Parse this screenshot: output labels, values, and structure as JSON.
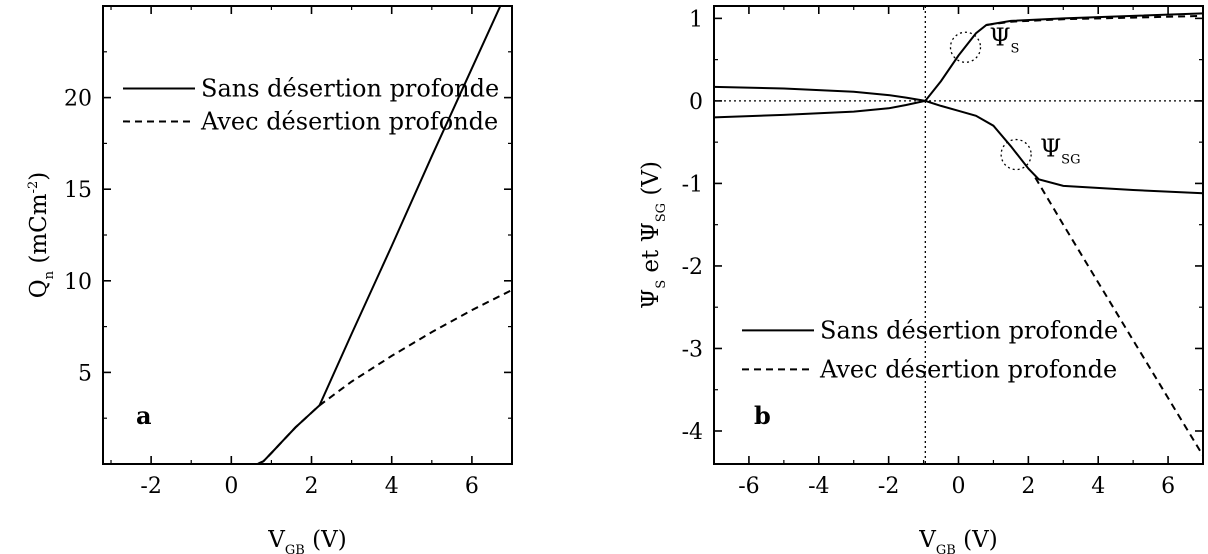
{
  "chart_data": [
    {
      "type": "line",
      "panel_label": "a",
      "xlabel": {
        "main": "V",
        "sub": "GB",
        "unit": " (V)"
      },
      "ylabel": {
        "main": "Q",
        "sub": "n",
        "unit_pre": " (mCm",
        "unit_sup": "-2",
        "unit_post": ")"
      },
      "xlim": [
        -3.2,
        7
      ],
      "ylim": [
        0,
        25
      ],
      "xticks": [
        -2,
        0,
        2,
        4,
        6
      ],
      "yticks": [
        5,
        10,
        15,
        20
      ],
      "legend": {
        "placement": "top-left"
      },
      "series": [
        {
          "name": "Sans désertion profonde",
          "style": "solid",
          "x": [
            -3.2,
            0.65,
            0.8,
            1.0,
            1.3,
            1.6,
            2.0,
            2.2,
            3,
            4,
            5,
            6,
            7
          ],
          "y": [
            0,
            0,
            0.15,
            0.6,
            1.3,
            2.0,
            2.8,
            3.2,
            7.1,
            11.9,
            16.8,
            21.6,
            26.4
          ]
        },
        {
          "name": "Avec désertion profonde",
          "style": "dashed",
          "x": [
            -3.2,
            0.65,
            0.8,
            1.0,
            1.3,
            1.6,
            2.0,
            2.2,
            3,
            4,
            5,
            6,
            7
          ],
          "y": [
            0,
            0,
            0.15,
            0.6,
            1.3,
            2.0,
            2.8,
            3.2,
            4.5,
            5.9,
            7.2,
            8.4,
            9.5
          ]
        }
      ]
    },
    {
      "type": "line",
      "panel_label": "b",
      "xlabel": {
        "main": "V",
        "sub": "GB",
        "unit": " (V)"
      },
      "ylabel": {
        "main1": "Ψ",
        "sub1": "S",
        "mid": " et Ψ",
        "sub2": "SG",
        "unit": " (V)"
      },
      "xlim": [
        -7,
        7
      ],
      "ylim": [
        -4.4,
        1.15
      ],
      "xticks": [
        -6,
        -4,
        -2,
        0,
        2,
        4,
        6
      ],
      "yticks": [
        1,
        0,
        -1,
        -2,
        -3,
        -4
      ],
      "ref_lines": {
        "x": -0.95,
        "y": 0
      },
      "annotations": [
        {
          "main": "Ψ",
          "sub": "S",
          "x": 0.2,
          "y": 0.65
        },
        {
          "main": "Ψ",
          "sub": "SG",
          "x": 1.65,
          "y": -0.65
        }
      ],
      "legend": {
        "placement": "bottom-left"
      },
      "series": [
        {
          "name": "Sans désertion profonde",
          "style": "solid",
          "x": [
            -7,
            -5,
            -3,
            -2,
            -1.5,
            -0.95,
            -0.5,
            0,
            0.5,
            0.8,
            1.5,
            3,
            5,
            7
          ],
          "y": [
            -0.2,
            -0.17,
            -0.13,
            -0.09,
            -0.05,
            0,
            0.24,
            0.55,
            0.82,
            0.92,
            0.97,
            1.0,
            1.03,
            1.06
          ]
        },
        {
          "name": "Sans désertion profonde",
          "style": "solid",
          "x": [
            -7,
            -5,
            -3,
            -2,
            -1.5,
            -0.95,
            -0.5,
            0,
            0.5,
            1.0,
            1.5,
            2.0,
            2.3,
            3,
            5,
            7
          ],
          "y": [
            0.17,
            0.15,
            0.11,
            0.07,
            0.04,
            0,
            -0.06,
            -0.12,
            -0.18,
            -0.3,
            -0.55,
            -0.82,
            -0.95,
            -1.03,
            -1.08,
            -1.12
          ]
        },
        {
          "name": "Avec désertion profonde",
          "style": "dashed",
          "x": [
            0.8,
            1.5,
            3,
            5,
            7
          ],
          "y": [
            0.92,
            0.96,
            0.99,
            1.01,
            1.03
          ]
        },
        {
          "name": "Avec désertion profonde",
          "style": "dashed",
          "x": [
            2.2,
            3,
            4,
            5,
            6,
            7
          ],
          "y": [
            -0.93,
            -1.5,
            -2.2,
            -2.9,
            -3.6,
            -4.3
          ]
        }
      ]
    }
  ]
}
